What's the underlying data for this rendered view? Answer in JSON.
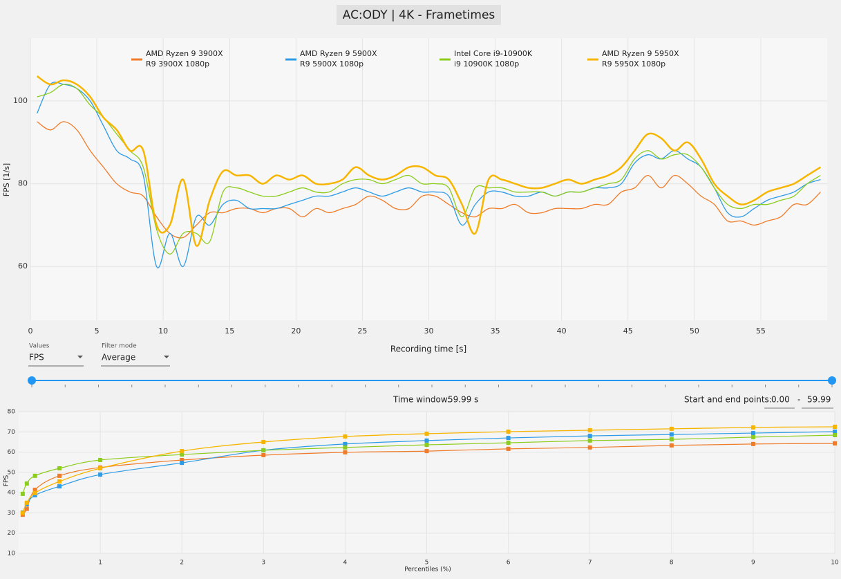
{
  "chart_data": [
    {
      "type": "line",
      "title": "AC:ODY | 4K - Frametimes",
      "xlabel": "Recording time [s]",
      "ylabel": "FPS [1/s]",
      "x": [
        0.5,
        1.5,
        2.5,
        3.5,
        4.5,
        5.5,
        6.5,
        7.5,
        8.5,
        9.5,
        10.5,
        11.5,
        12.5,
        13.5,
        14.5,
        15.5,
        16.5,
        17.5,
        18.5,
        19.5,
        20.5,
        21.5,
        22.5,
        23.5,
        24.5,
        25.5,
        26.5,
        27.5,
        28.5,
        29.5,
        30.5,
        31.5,
        32.5,
        33.5,
        34.5,
        35.5,
        36.5,
        37.5,
        38.5,
        39.5,
        40.5,
        41.5,
        42.5,
        43.5,
        44.5,
        45.5,
        46.5,
        47.5,
        48.5,
        49.5,
        50.5,
        51.5,
        52.5,
        53.5,
        54.5,
        55.5,
        56.5,
        57.5,
        58.5,
        59.5
      ],
      "xlim": [
        0,
        60
      ],
      "xticks": [
        0,
        5,
        10,
        15,
        20,
        25,
        30,
        35,
        40,
        45,
        50,
        55
      ],
      "ylim": [
        47,
        115.2
      ],
      "yticks": [
        60,
        80,
        100
      ],
      "grid": true,
      "legend": "top",
      "series": [
        {
          "name": "AMD Ryzen 9 3900X",
          "run": "R9 3900X 1080p",
          "color": "#f07b28",
          "values": [
            95,
            93,
            95,
            93,
            88,
            84,
            80,
            78,
            77,
            72,
            68,
            67,
            70,
            73,
            73,
            74,
            74,
            73,
            74,
            74,
            72,
            74,
            73,
            74,
            75,
            77,
            76,
            74,
            74,
            77,
            77,
            75,
            73,
            72,
            74,
            74,
            75,
            73,
            73,
            74,
            74,
            74,
            75,
            75,
            78,
            79,
            82,
            79,
            82,
            80,
            77,
            75,
            71,
            71,
            70,
            71,
            72,
            75,
            75,
            78
          ]
        },
        {
          "name": "AMD Ryzen 9 5900X",
          "run": "R9 5900X 1080p",
          "color": "#2d9be6",
          "values": [
            97,
            104,
            104,
            103,
            100,
            94,
            88,
            86,
            82,
            60,
            68,
            60,
            72,
            70,
            75,
            76,
            74,
            74,
            74,
            75,
            76,
            77,
            77,
            78,
            79,
            78,
            77,
            78,
            79,
            78,
            78,
            77,
            70,
            75,
            78,
            78,
            77,
            77,
            78,
            77,
            78,
            78,
            79,
            79,
            80,
            85,
            87,
            86,
            88,
            86,
            84,
            79,
            73,
            72,
            74,
            76,
            77,
            78,
            80,
            81
          ]
        },
        {
          "name": "Intel Core i9-10900K",
          "run": "i9 10900K 1080p",
          "color": "#8ccc1c",
          "values": [
            101,
            102,
            104,
            103,
            99,
            96,
            92,
            88,
            84,
            69,
            63,
            68,
            68,
            66,
            78,
            79,
            78,
            77,
            77,
            78,
            79,
            78,
            78,
            80,
            81,
            81,
            80,
            81,
            82,
            80,
            80,
            79,
            72,
            79,
            79,
            79,
            78,
            78,
            78,
            77,
            78,
            78,
            79,
            80,
            81,
            86,
            88,
            86,
            87,
            87,
            84,
            79,
            75,
            74,
            75,
            75,
            76,
            77,
            80,
            82
          ]
        },
        {
          "name": "AMD Ryzen 9 5950X",
          "run": "R9 5950X 1080p",
          "color": "#f7b500",
          "values": [
            106,
            104,
            105,
            104,
            101,
            96,
            93,
            88,
            88,
            70,
            70,
            81,
            65,
            76,
            83,
            82,
            82,
            80,
            82,
            81,
            82,
            80,
            80,
            81,
            84,
            82,
            81,
            82,
            84,
            84,
            82,
            81,
            75,
            68,
            81,
            81,
            80,
            79,
            79,
            80,
            81,
            80,
            81,
            82,
            84,
            88,
            92,
            91,
            88,
            90,
            86,
            80,
            77,
            75,
            76,
            78,
            79,
            80,
            82,
            84
          ]
        }
      ]
    },
    {
      "type": "line",
      "xlabel": "Percentiles (%)",
      "ylabel": "FPS",
      "markers": true,
      "grid": true,
      "x": [
        0.05,
        0.1,
        0.2,
        0.5,
        1,
        2,
        3,
        4,
        5,
        6,
        7,
        8,
        9,
        10
      ],
      "xlim": [
        0,
        10
      ],
      "xticks": [
        1,
        2,
        3,
        4,
        5,
        6,
        7,
        8,
        9,
        10
      ],
      "ylim": [
        10,
        80
      ],
      "yticks": [
        10,
        20,
        30,
        40,
        50,
        60,
        70,
        80
      ],
      "series": [
        {
          "color": "#f07b28",
          "values": [
            29.1,
            32,
            41.4,
            48.3,
            52.4,
            56.1,
            58.5,
            59.9,
            60.5,
            61.6,
            62.3,
            63.3,
            64,
            64.3
          ]
        },
        {
          "color": "#2d9be6",
          "values": [
            30.2,
            34.3,
            38.7,
            43.1,
            48.9,
            54.7,
            60.9,
            64,
            65.7,
            67,
            68,
            68.7,
            69.4,
            70.1
          ]
        },
        {
          "color": "#8ccc1c",
          "values": [
            39.4,
            44.5,
            48.3,
            52,
            56.1,
            58.8,
            60.9,
            62.3,
            63.6,
            64.6,
            65.7,
            66.3,
            67.4,
            68.4
          ]
        },
        {
          "color": "#f7b500",
          "values": [
            30,
            35,
            39.8,
            45.5,
            52,
            60.5,
            65,
            67.7,
            69.1,
            70.1,
            70.8,
            71.5,
            72.2,
            72.5
          ]
        }
      ]
    }
  ],
  "controls": {
    "values_label": "Values",
    "values": "FPS",
    "filter_label": "Filter mode",
    "filter": "Average",
    "time_window_label": "Time window:",
    "time_window": "59.99 s",
    "range_label": "Start and end points:",
    "start": "0.00",
    "separator": "-",
    "end": "59.99"
  }
}
